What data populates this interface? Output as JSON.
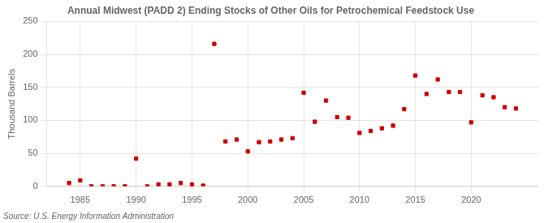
{
  "chart_data": {
    "type": "scatter",
    "title": "Annual Midwest (PADD 2) Ending Stocks of Other Oils for Petrochemical Feedstock Use",
    "ylabel": "Thousand Barrels",
    "source": "Source: U.S. Energy Information Administration",
    "color": "#cc0000",
    "marker": "square",
    "x": [
      1984,
      1985,
      1986,
      1987,
      1988,
      1989,
      1990,
      1991,
      1992,
      1993,
      1994,
      1995,
      1996,
      1997,
      1998,
      1999,
      2000,
      2001,
      2002,
      2003,
      2004,
      2005,
      2006,
      2007,
      2008,
      2009,
      2010,
      2011,
      2012,
      2013,
      2014,
      2015,
      2016,
      2017,
      2018,
      2019,
      2020,
      2021,
      2022,
      2023,
      2024
    ],
    "values": [
      5,
      9,
      0,
      0,
      0,
      0,
      42,
      0,
      3,
      3,
      5,
      3,
      1,
      216,
      68,
      71,
      53,
      67,
      68,
      71,
      73,
      142,
      98,
      130,
      105,
      104,
      81,
      84,
      88,
      92,
      117,
      168,
      140,
      162,
      143,
      143,
      97,
      138,
      135,
      120,
      118
    ],
    "xlim": [
      1982,
      2026
    ],
    "ylim": [
      0,
      250
    ],
    "xticks": [
      1985,
      1990,
      1995,
      2000,
      2005,
      2010,
      2015,
      2020
    ],
    "yticks": [
      0,
      50,
      100,
      150,
      200,
      250
    ],
    "grid": true
  }
}
